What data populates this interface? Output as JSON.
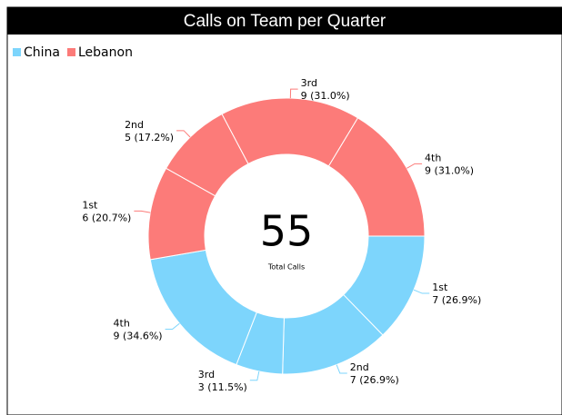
{
  "chart_data": {
    "type": "donut",
    "title": "Calls on Team per Quarter",
    "categories": [
      "1st",
      "2nd",
      "3rd",
      "4th"
    ],
    "series": [
      {
        "name": "China",
        "color": "#7dd5fc",
        "values": [
          7,
          7,
          3,
          9
        ],
        "value_labels": [
          "7 (26.9%)",
          "7 (26.9%)",
          "3 (11.5%)",
          "9 (34.6%)"
        ]
      },
      {
        "name": "Lebanon",
        "color": "#fc7b79",
        "values": [
          6,
          5,
          9,
          9
        ],
        "value_labels": [
          "6 (20.7%)",
          "5 (17.2%)",
          "9 (31.0%)",
          "9 (31.0%)"
        ]
      }
    ],
    "center_value": 55,
    "center_label": "Total Calls",
    "legend": "top-left"
  }
}
